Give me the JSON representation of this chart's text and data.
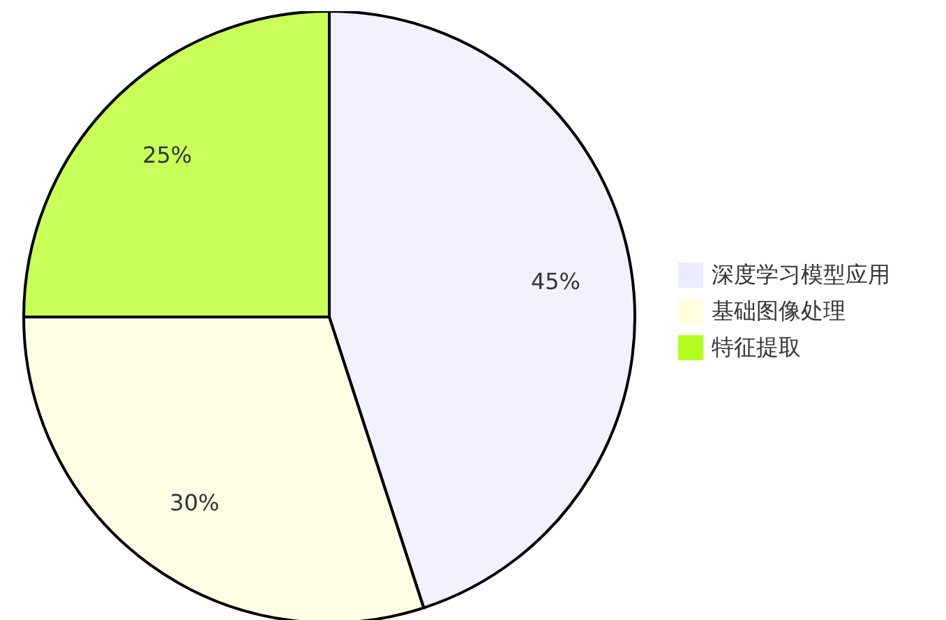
{
  "chart_data": {
    "type": "pie",
    "categories": [
      "深度学习模型应用",
      "基础图像处理",
      "特征提取"
    ],
    "values": [
      45,
      30,
      25
    ],
    "colors": [
      "#ececff",
      "#ffffde",
      "#b5ff20"
    ],
    "value_labels": [
      "45%",
      "30%",
      "25%"
    ],
    "legend": "right"
  }
}
